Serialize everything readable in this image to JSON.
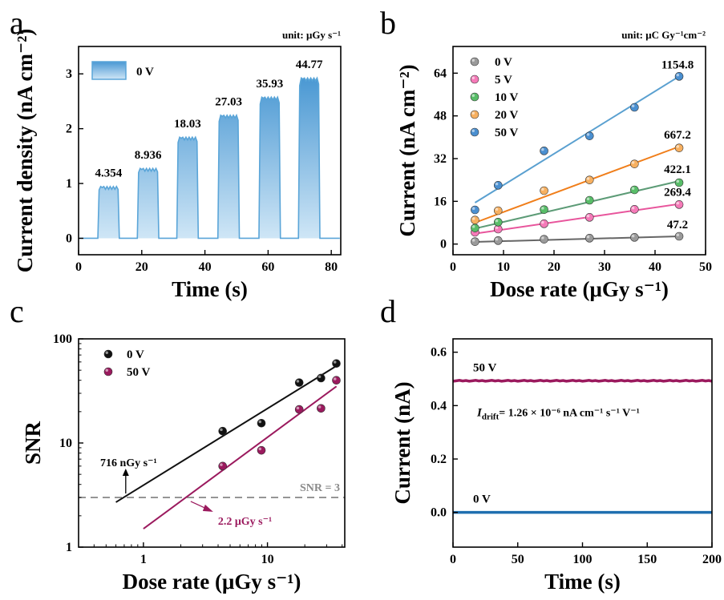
{
  "chart_data": [
    {
      "panel": "a",
      "type": "line",
      "unit_note": "unit: μGy s⁻¹",
      "xlabel": "Time (s)",
      "ylabel": "Current density (nA cm⁻²)",
      "xlim": [
        0,
        83
      ],
      "ylim": [
        -0.3,
        3.5
      ],
      "xticks": [
        0,
        20,
        40,
        60,
        80
      ],
      "yticks": [
        0,
        1,
        2,
        3
      ],
      "legend": {
        "label": "0 V",
        "placement": "top-left"
      },
      "color": "#5aa5d8",
      "pulses": [
        {
          "start": 6.5,
          "end": 12.5,
          "level": 0.92,
          "label": "4.354"
        },
        {
          "start": 19.0,
          "end": 25.0,
          "level": 1.25,
          "label": "8.936"
        },
        {
          "start": 31.5,
          "end": 37.5,
          "level": 1.82,
          "label": "18.03"
        },
        {
          "start": 44.5,
          "end": 50.5,
          "level": 2.22,
          "label": "27.03"
        },
        {
          "start": 57.5,
          "end": 63.5,
          "level": 2.55,
          "label": "35.93"
        },
        {
          "start": 70.0,
          "end": 76.0,
          "level": 2.9,
          "label": "44.77"
        }
      ],
      "baseline": 0
    },
    {
      "panel": "b",
      "type": "scatter",
      "unit_note": "unit: μC Gy⁻¹cm⁻²",
      "xlabel": "Dose rate (μGy s⁻¹)",
      "ylabel": "Current (nA cm⁻²)",
      "xlim": [
        0,
        50
      ],
      "ylim": [
        -4,
        74
      ],
      "xticks": [
        0,
        10,
        20,
        30,
        40,
        50
      ],
      "yticks": [
        0,
        16,
        32,
        48,
        64
      ],
      "legend_placement": "top-left",
      "x": [
        4.354,
        8.936,
        18.03,
        27.03,
        35.93,
        44.77
      ],
      "series": [
        {
          "name": "0 V",
          "color": "#9a9a9a",
          "line": "#666666",
          "values": [
            0.9,
            1.3,
            1.8,
            2.2,
            2.5,
            2.9
          ],
          "fit": [
            0.8,
            2.9
          ],
          "label": "47.2"
        },
        {
          "name": "5 V",
          "color": "#f57ab8",
          "line": "#e8559c",
          "values": [
            4.4,
            5.6,
            7.6,
            10.0,
            13.0,
            14.8
          ],
          "fit": [
            3.9,
            15.0
          ],
          "label": "269.4"
        },
        {
          "name": "10 V",
          "color": "#58bd68",
          "line": "#5c9b76",
          "values": [
            6.0,
            8.2,
            12.9,
            16.4,
            20.3,
            23.0
          ],
          "fit": [
            5.8,
            23.6
          ],
          "label": "422.1"
        },
        {
          "name": "20 V",
          "color": "#f7b060",
          "line": "#f07e1a",
          "values": [
            9.0,
            12.5,
            20.0,
            24.0,
            30.0,
            36.0
          ],
          "fit": [
            8.0,
            36.5
          ],
          "label": "667.2"
        },
        {
          "name": "50 V",
          "color": "#4a8fd0",
          "line": "#5aa0d0",
          "values": [
            12.8,
            22.0,
            34.9,
            40.5,
            51.2,
            62.8
          ],
          "fit": [
            15.5,
            62.8
          ],
          "label": "1154.8"
        }
      ]
    },
    {
      "panel": "c",
      "type": "scatter",
      "scale": "log-log",
      "xlabel": "Dose rate (μGy s⁻¹)",
      "ylabel": "SNR",
      "xlim": [
        0.3,
        42
      ],
      "ylim": [
        1,
        100
      ],
      "xticks": [
        1,
        10
      ],
      "yticks": [
        1,
        10,
        100
      ],
      "legend_placement": "top-left",
      "threshold": {
        "value": 3,
        "label": "SNR = 3"
      },
      "series": [
        {
          "name": "0 V",
          "color": "#111111",
          "x": [
            4.354,
            8.936,
            18.03,
            27.03,
            35.93
          ],
          "values": [
            13,
            15.5,
            38,
            42,
            58
          ],
          "fit_x": [
            0.6,
            36
          ],
          "fit_y": [
            2.7,
            55
          ]
        },
        {
          "name": "50 V",
          "color": "#9b1a5e",
          "x": [
            4.354,
            8.936,
            18.03,
            27.03,
            35.93
          ],
          "values": [
            6,
            8.5,
            21,
            21.5,
            40
          ],
          "fit_x": [
            1.0,
            36
          ],
          "fit_y": [
            1.5,
            35
          ]
        }
      ],
      "annotations": [
        {
          "text": "716 nGy s⁻¹",
          "color": "#000000"
        },
        {
          "text": "2.2 μGy s⁻¹",
          "color": "#9b1a5e"
        }
      ]
    },
    {
      "panel": "d",
      "type": "line",
      "xlabel": "Time (s)",
      "ylabel": "Current (nA)",
      "xlim": [
        0,
        200
      ],
      "ylim": [
        -0.13,
        0.65
      ],
      "xticks": [
        0,
        50,
        100,
        150,
        200
      ],
      "yticks": [
        0.0,
        0.2,
        0.4,
        0.6
      ],
      "ytick_labels": [
        "0.0",
        "0.2",
        "0.4",
        "0.6"
      ],
      "series": [
        {
          "name": "50 V",
          "color": "#9b1a5e",
          "level": 0.493
        },
        {
          "name": "0 V",
          "color": "#1f6fb0",
          "level": 0.0
        }
      ],
      "drift_label": {
        "symbol": "I",
        "subscript": "drift",
        "text": "= 1.26 × 10⁻⁶ nA cm⁻¹ s⁻¹ V⁻¹"
      }
    }
  ]
}
